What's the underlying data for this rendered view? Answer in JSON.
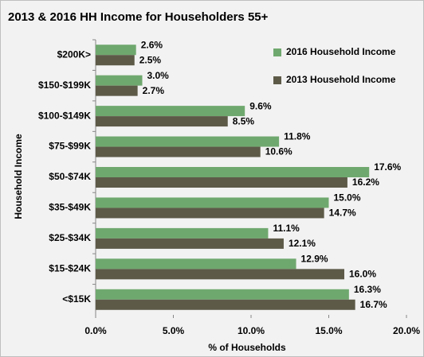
{
  "chart_data": {
    "type": "bar",
    "orientation": "horizontal",
    "title": "2013 & 2016 HH Income for Householders 55+",
    "x_label": "% of Households",
    "y_label": "Household Income",
    "categories": [
      "$200K>",
      "$150-$199K",
      "$100-$149K",
      "$75-$99K",
      "$50-$74K",
      "$35-$49K",
      "$25-$34K",
      "$15-$24K",
      "<$15K"
    ],
    "series": [
      {
        "name": "2016 Household Income",
        "color": "#6fa86e",
        "values": [
          2.6,
          3.0,
          9.6,
          11.8,
          17.6,
          15.0,
          11.1,
          12.9,
          16.3
        ],
        "value_labels": [
          "2.6%",
          "3.0%",
          "9.6%",
          "11.8%",
          "17.6%",
          "15.0%",
          "11.1%",
          "12.9%",
          "16.3%"
        ]
      },
      {
        "name": "2013 Household Income",
        "color": "#5d5a48",
        "values": [
          2.5,
          2.7,
          8.5,
          10.6,
          16.2,
          14.7,
          12.1,
          16.0,
          16.7
        ],
        "value_labels": [
          "2.5%",
          "2.7%",
          "8.5%",
          "10.6%",
          "16.2%",
          "14.7%",
          "12.1%",
          "16.0%",
          "16.7%"
        ]
      }
    ],
    "xlim": [
      0,
      20
    ],
    "xticks": [
      {
        "value": 0,
        "label": "0.0%"
      },
      {
        "value": 5,
        "label": "5.0%"
      },
      {
        "value": 10,
        "label": "10.0%"
      },
      {
        "value": 15,
        "label": "15.0%"
      },
      {
        "value": 20,
        "label": "20.0%"
      }
    ],
    "grid": false,
    "legend": "upper right"
  }
}
